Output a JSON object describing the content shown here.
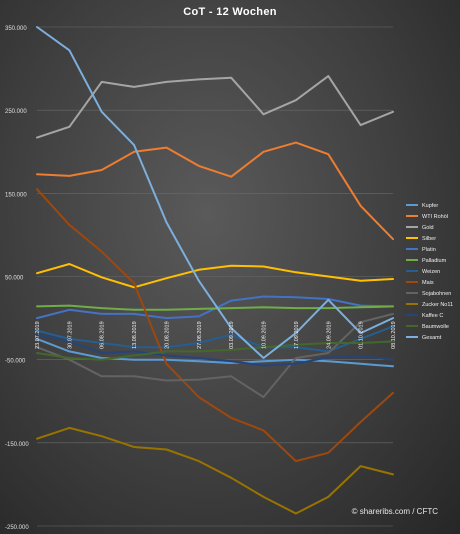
{
  "chart_data": {
    "type": "line",
    "title": "CoT - 12 Wochen",
    "credit": "© shareribs.com / CFTC",
    "ylim": [
      -250000,
      350000
    ],
    "y_ticks": [
      350000,
      250000,
      150000,
      50000,
      -50000,
      -150000,
      -250000
    ],
    "y_tick_labels": [
      "350.000",
      "250.000",
      "150.000",
      "50.000",
      "-50.000",
      "-150.000",
      "-250.000"
    ],
    "categories": [
      "23.07.2019",
      "30.07.2019",
      "06.08.2019",
      "13.08.2019",
      "20.08.2019",
      "27.08.2019",
      "03.09.2019",
      "10.09.2019",
      "17.09.2019",
      "24.09.2019",
      "01.10.2019",
      "08.10.2019"
    ],
    "legend_position": "right",
    "grid": true,
    "series": [
      {
        "name": "Kupfer",
        "color": "#5b9bd5",
        "values": [
          -25000,
          -40000,
          -48000,
          -50000,
          -50000,
          -52000,
          -54000,
          -52000,
          -50000,
          -52000,
          -55000,
          -58000
        ]
      },
      {
        "name": "WTI Rohöl",
        "color": "#ed7d31",
        "values": [
          173000,
          171000,
          178000,
          200000,
          205000,
          183000,
          170000,
          200000,
          211000,
          197000,
          135000,
          95000
        ]
      },
      {
        "name": "Gold",
        "color": "#a5a5a5",
        "values": [
          217000,
          230000,
          284000,
          278000,
          284000,
          287000,
          289000,
          245000,
          262000,
          291000,
          232000,
          248000
        ]
      },
      {
        "name": "Silber",
        "color": "#ffc000",
        "values": [
          54000,
          65000,
          49000,
          37000,
          48000,
          58000,
          63000,
          62000,
          55000,
          50000,
          45000,
          47000
        ]
      },
      {
        "name": "Platin",
        "color": "#4472c4",
        "values": [
          0,
          10000,
          5000,
          5000,
          0,
          2000,
          21000,
          26000,
          25000,
          23000,
          15000,
          14000
        ]
      },
      {
        "name": "Palladium",
        "color": "#70ad47",
        "values": [
          14000,
          15000,
          12000,
          10000,
          10000,
          11000,
          12000,
          13000,
          12000,
          12000,
          13000,
          14000
        ]
      },
      {
        "name": "Weizen",
        "color": "#255e91",
        "values": [
          -15000,
          -25000,
          -30000,
          -35000,
          -35000,
          -30000,
          -20000,
          -35000,
          -35000,
          -40000,
          -25000,
          -10000
        ]
      },
      {
        "name": "Mais",
        "color": "#9e480e",
        "values": [
          155000,
          112000,
          80000,
          42000,
          -55000,
          -95000,
          -120000,
          -135000,
          -172000,
          -162000,
          -125000,
          -90000
        ]
      },
      {
        "name": "Sojabohnen",
        "color": "#636363",
        "values": [
          -35000,
          -50000,
          -70000,
          -70000,
          -75000,
          -74000,
          -70000,
          -95000,
          -48000,
          -42000,
          -5000,
          5000
        ]
      },
      {
        "name": "Zucker No11",
        "color": "#997300",
        "values": [
          -145000,
          -132000,
          -142000,
          -155000,
          -158000,
          -172000,
          -192000,
          -215000,
          -235000,
          -215000,
          -178000,
          -188000
        ]
      },
      {
        "name": "Kaffee C",
        "color": "#264478",
        "values": [
          -20000,
          -28000,
          -42000,
          -40000,
          -45000,
          -48000,
          -52000,
          -57000,
          -55000,
          -47000,
          -46000,
          -50000
        ]
      },
      {
        "name": "Baumwolle",
        "color": "#43682b",
        "values": [
          -42000,
          -48000,
          -50000,
          -45000,
          -40000,
          -40000,
          -38000,
          -35000,
          -32000,
          -30000,
          -30000,
          -28000
        ]
      },
      {
        "name": "Gesamt",
        "color": "#7cafdd",
        "values": [
          350000,
          322000,
          248000,
          208000,
          115000,
          45000,
          -12000,
          -48000,
          -18000,
          22000,
          -18000,
          0
        ]
      }
    ]
  }
}
